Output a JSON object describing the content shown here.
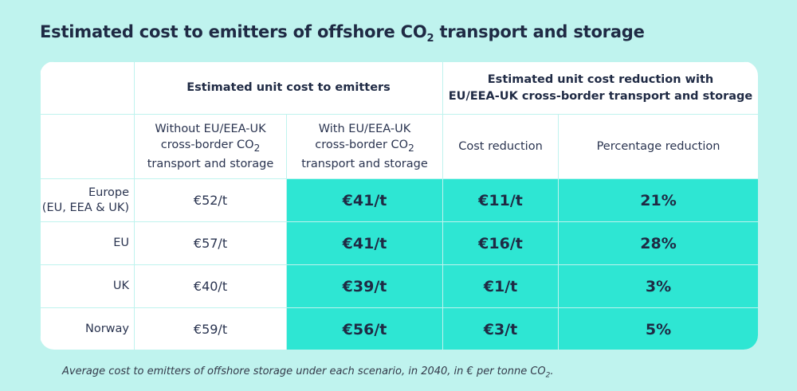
{
  "title": "Estimated cost to emitters of offshore CO",
  "title_sub": "2",
  "title_tail": " transport and storage",
  "headers": {
    "group_cost": "Estimated unit cost to emitters",
    "group_reduction_line1": "Estimated unit cost reduction with",
    "group_reduction_line2": "EU/EEA-UK cross-border transport and storage",
    "col_without": [
      "Without EU/EEA-UK",
      "cross-border CO",
      "2",
      "transport and storage"
    ],
    "col_with": [
      "With EU/EEA-UK",
      "cross-border CO",
      "2",
      "transport and storage"
    ],
    "col_cost_reduction": "Cost reduction",
    "col_percentage_reduction": "Percentage reduction"
  },
  "rows": [
    {
      "label": "Europe",
      "label2": "(EU, EEA & UK)",
      "without": "€52/t",
      "with": "€41/t",
      "reduction": "€11/t",
      "percent": "21%"
    },
    {
      "label": "EU",
      "without": "€57/t",
      "with": "€41/t",
      "reduction": "€16/t",
      "percent": "28%"
    },
    {
      "label": "UK",
      "without": "€40/t",
      "with": "€39/t",
      "reduction": "€1/t",
      "percent": "3%"
    },
    {
      "label": "Norway",
      "without": "€59/t",
      "with": "€56/t",
      "reduction": "€3/t",
      "percent": "5%"
    }
  ],
  "footnote": "Average cost to emitters of offshore storage under each scenario, in 2040, in € per tonne CO",
  "footnote_sub": "2",
  "footnote_tail": ".",
  "colors": {
    "background": "#bff3ee",
    "highlight": "#2ee6d3",
    "text": "#1f2a44"
  },
  "chart_data": {
    "type": "table",
    "title": "Estimated cost to emitters of offshore CO2 transport and storage",
    "columns": [
      "Without EU/EEA-UK cross-border CO2 transport and storage",
      "With EU/EEA-UK cross-border CO2 transport and storage",
      "Cost reduction",
      "Percentage reduction"
    ],
    "categories": [
      "Europe (EU, EEA & UK)",
      "EU",
      "UK",
      "Norway"
    ],
    "series": [
      {
        "name": "Without EU/EEA-UK cross-border CO2 transport and storage",
        "values": [
          52,
          57,
          40,
          59
        ]
      },
      {
        "name": "With EU/EEA-UK cross-border CO2 transport and storage",
        "values": [
          41,
          41,
          39,
          56
        ]
      },
      {
        "name": "Cost reduction",
        "values": [
          11,
          16,
          1,
          3
        ]
      },
      {
        "name": "Percentage reduction",
        "values": [
          21,
          28,
          3,
          5
        ]
      }
    ]
  }
}
